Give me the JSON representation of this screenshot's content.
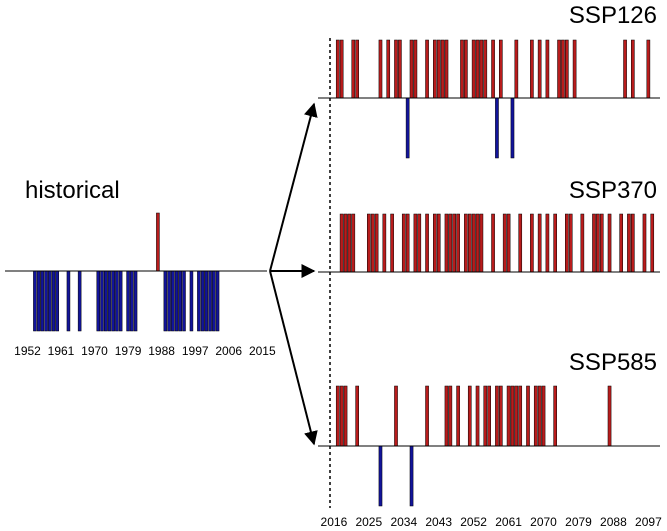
{
  "colors": {
    "positive": "#b81c1c",
    "negative": "#12149a",
    "axis": "#000000"
  },
  "chart_data": [
    {
      "type": "bar",
      "title": "historical",
      "xlim": [
        1950,
        2016
      ],
      "ylim": [
        -1,
        1
      ],
      "x_ticks": [
        "1952",
        "1961",
        "1970",
        "1979",
        "1988",
        "1997",
        "2006",
        "2015"
      ],
      "positive_years": [
        1987
      ],
      "negative_years": [
        1954,
        1955,
        1956,
        1957,
        1958,
        1959,
        1960,
        1963,
        1966,
        1971,
        1972,
        1973,
        1974,
        1975,
        1976,
        1977,
        1979,
        1980,
        1981,
        1989,
        1990,
        1991,
        1992,
        1993,
        1994,
        1996,
        1998,
        1999,
        2000,
        2001,
        2002,
        2003
      ]
    },
    {
      "type": "bar",
      "title": "SSP126",
      "xlim": [
        2015,
        2100
      ],
      "ylim": [
        -1,
        1
      ],
      "x_ticks": [
        "2016",
        "2025",
        "2034",
        "2043",
        "2052",
        "2061",
        "2070",
        "2079",
        "2088",
        "2097"
      ],
      "positive_years": [
        2017,
        2018,
        2021,
        2022,
        2028,
        2030,
        2032,
        2033,
        2036,
        2037,
        2040,
        2042,
        2043,
        2044,
        2045,
        2049,
        2050,
        2052,
        2053,
        2054,
        2055,
        2057,
        2059,
        2063,
        2067,
        2069,
        2071,
        2074,
        2075,
        2076,
        2078,
        2091,
        2093,
        2097
      ],
      "negative_years": [
        2035,
        2058,
        2062
      ]
    },
    {
      "type": "bar",
      "title": "SSP370",
      "xlim": [
        2015,
        2100
      ],
      "ylim": [
        -1,
        1
      ],
      "x_ticks": [],
      "positive_years": [
        2018,
        2019,
        2020,
        2021,
        2025,
        2026,
        2027,
        2029,
        2031,
        2034,
        2035,
        2037,
        2038,
        2040,
        2042,
        2043,
        2045,
        2046,
        2047,
        2048,
        2050,
        2051,
        2052,
        2053,
        2054,
        2057,
        2060,
        2061,
        2064,
        2067,
        2069,
        2071,
        2073,
        2076,
        2077,
        2080,
        2083,
        2084,
        2085,
        2087,
        2090,
        2092,
        2093,
        2096,
        2098
      ],
      "negative_years": []
    },
    {
      "type": "bar",
      "title": "SSP585",
      "xlim": [
        2015,
        2100
      ],
      "ylim": [
        -1,
        1
      ],
      "x_ticks": [],
      "positive_years": [
        2017,
        2018,
        2019,
        2022,
        2032,
        2040,
        2045,
        2046,
        2048,
        2051,
        2053,
        2055,
        2056,
        2058,
        2059,
        2061,
        2062,
        2063,
        2064,
        2066,
        2068,
        2069,
        2070,
        2073,
        2087
      ],
      "negative_years": [
        2028,
        2036
      ]
    }
  ]
}
